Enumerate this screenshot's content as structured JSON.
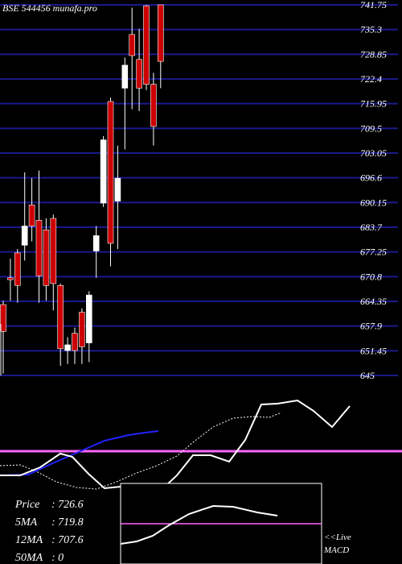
{
  "header": {
    "title": "BSE 544456 munafa.pro"
  },
  "chart_data": [
    {
      "type": "candlestick",
      "title": "BSE 544456 munafa.pro",
      "ylim": [
        645,
        741.75
      ],
      "price_ticks": [
        741.75,
        735.3,
        728.85,
        722.4,
        715.95,
        709.5,
        703.05,
        696.6,
        690.15,
        683.7,
        677.25,
        670.8,
        664.35,
        657.9,
        651.45,
        645
      ],
      "grid": true,
      "up_color": "#ffffff",
      "down_color": "#cc0000",
      "candles": [
        {
          "o": 663.5,
          "c": 656.5,
          "h": 664.5,
          "l": 645.5
        },
        {
          "o": 670.5,
          "c": 670.0,
          "h": 675.5,
          "l": 664.5
        },
        {
          "o": 677.0,
          "c": 668.5,
          "h": 678.0,
          "l": 664.0
        },
        {
          "o": 679.0,
          "c": 684.0,
          "h": 698.0,
          "l": 675.0
        },
        {
          "o": 689.5,
          "c": 684.0,
          "h": 696.5,
          "l": 680.0
        },
        {
          "o": 685.5,
          "c": 671.0,
          "h": 698.5,
          "l": 664.0
        },
        {
          "o": 683.0,
          "c": 668.5,
          "h": 686.0,
          "l": 664.5
        },
        {
          "o": 686.0,
          "c": 669.0,
          "h": 687.0,
          "l": 662.0
        },
        {
          "o": 668.5,
          "c": 652.0,
          "h": 669.0,
          "l": 647.5
        },
        {
          "o": 651.5,
          "c": 653.0,
          "h": 655.0,
          "l": 648.0
        },
        {
          "o": 656.0,
          "c": 651.5,
          "h": 657.5,
          "l": 648.0
        },
        {
          "o": 661.5,
          "c": 652.5,
          "h": 662.5,
          "l": 648.0
        },
        {
          "o": 653.5,
          "c": 666.0,
          "h": 667.0,
          "l": 648.5
        },
        {
          "o": 677.5,
          "c": 681.5,
          "h": 684.0,
          "l": 670.5
        },
        {
          "o": 690.0,
          "c": 706.5,
          "h": 707.5,
          "l": 689.0
        },
        {
          "o": 716.5,
          "c": 679.5,
          "h": 717.5,
          "l": 673.5
        },
        {
          "o": 690.5,
          "c": 696.5,
          "h": 705.0,
          "l": 678.0
        },
        {
          "o": 720.0,
          "c": 726.0,
          "h": 728.0,
          "l": 704.0
        },
        {
          "o": 734.0,
          "c": 728.5,
          "h": 741.0,
          "l": 714.5
        },
        {
          "o": 727.5,
          "c": 720.0,
          "h": 735.5,
          "l": 714.0
        },
        {
          "o": 741.5,
          "c": 721.0,
          "h": 741.75,
          "l": 719.5
        },
        {
          "o": 721.0,
          "c": 710.0,
          "h": 724.0,
          "l": 705.0
        },
        {
          "o": 741.75,
          "c": 727.0,
          "h": 741.75,
          "l": 720.0
        }
      ],
      "moving_averages": [
        {
          "name": "5MA",
          "color": "#2222ff",
          "values": [
            null,
            null,
            null,
            null,
            null,
            null,
            null,
            null,
            null,
            null,
            null,
            null,
            null,
            null,
            null,
            null,
            null,
            null,
            null,
            null,
            null,
            null,
            null
          ]
        }
      ]
    },
    {
      "type": "line",
      "panel": "indicator",
      "reference_color": "#ff66ff",
      "series": [
        {
          "color": "#ffffff",
          "style": "dashed"
        },
        {
          "color": "#ffffff",
          "style": "solid"
        },
        {
          "color": "#2222ff",
          "style": "solid"
        }
      ]
    },
    {
      "type": "line",
      "panel": "macd",
      "series": [
        {
          "color": "#ffffff",
          "style": "solid"
        }
      ],
      "reference_color": "#ff66ff"
    }
  ],
  "info": {
    "price_label": "Price",
    "price_value": ": 726.6",
    "ma5_label": "5MA",
    "ma5_value": ": 719.8",
    "ma12_label": "12MA",
    "ma12_value": ": 707.6",
    "ma50_label": "50MA",
    "ma50_value": ": 0"
  },
  "live_macd": {
    "line1": "<<Live",
    "line2": "MACD"
  },
  "colors": {
    "background": "#000000",
    "grid": "#1a1a8c",
    "magenta": "#ff66ff",
    "blue": "#2222ff",
    "text": "#ffffff"
  }
}
